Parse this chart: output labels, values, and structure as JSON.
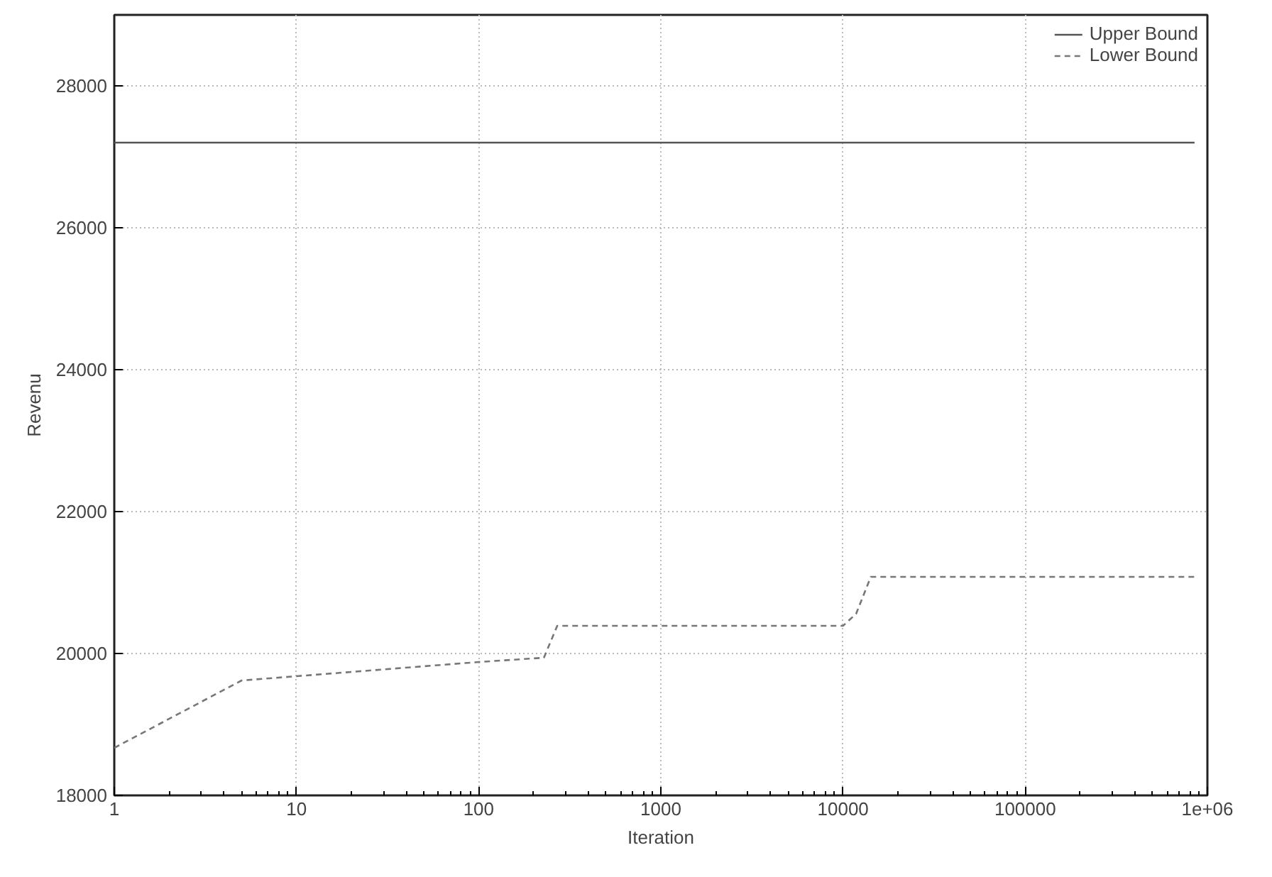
{
  "chart_data": {
    "type": "line",
    "xlabel": "Iteration",
    "ylabel": "Revenu",
    "xlim": [
      1,
      1000000
    ],
    "ylim": [
      18000,
      29000
    ],
    "log": "x",
    "xticks": [
      1,
      10,
      100,
      1000,
      10000,
      100000,
      {
        "value": 1000000,
        "label": "1e+06"
      }
    ],
    "yticks": [
      18000,
      20000,
      22000,
      24000,
      26000,
      28000
    ],
    "grid": true,
    "legend": "top right",
    "series": [
      {
        "name": "Upper Bound",
        "color": "#555555",
        "line_style": "solid",
        "x": [
          1,
          850000
        ],
        "values": [
          27200,
          27200
        ]
      },
      {
        "name": "Lower Bound",
        "color": "#777777",
        "line_style": "dashed",
        "x": [
          1,
          5,
          10,
          100,
          228,
          270,
          10000,
          11800,
          14200,
          850000
        ],
        "values": [
          18670,
          19620,
          19680,
          19880,
          19940,
          20390,
          20390,
          20560,
          21080,
          21080
        ]
      }
    ]
  }
}
